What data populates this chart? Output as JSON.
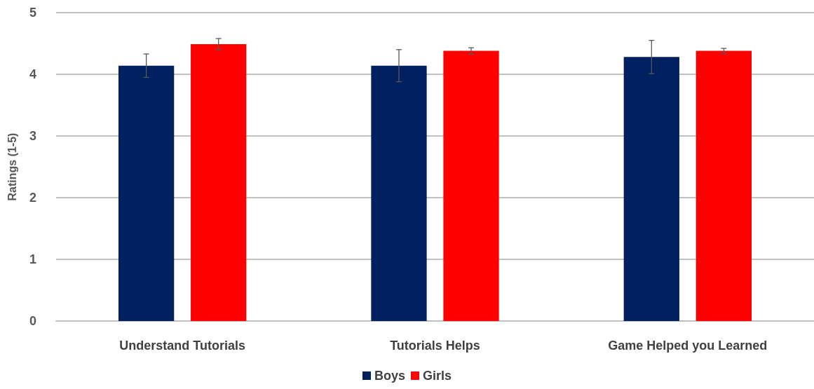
{
  "chart_data": {
    "type": "bar",
    "ylabel": "Ratings (1-5)",
    "categories": [
      "Understand Tutorials",
      "Tutorials Helps",
      "Game Helped you Learned"
    ],
    "series": [
      {
        "name": "Boys",
        "color": "#002060",
        "values": [
          4.14,
          4.14,
          4.28
        ],
        "errors": [
          0.19,
          0.26,
          0.27
        ]
      },
      {
        "name": "Girls",
        "color": "#ff0000",
        "values": [
          4.49,
          4.38,
          4.38
        ],
        "errors": [
          0.09,
          0.05,
          0.04
        ]
      }
    ],
    "ylim": [
      0,
      5
    ],
    "yticks": [
      0,
      1,
      2,
      3,
      4,
      5
    ],
    "grid": "y",
    "legend": "bottom"
  }
}
